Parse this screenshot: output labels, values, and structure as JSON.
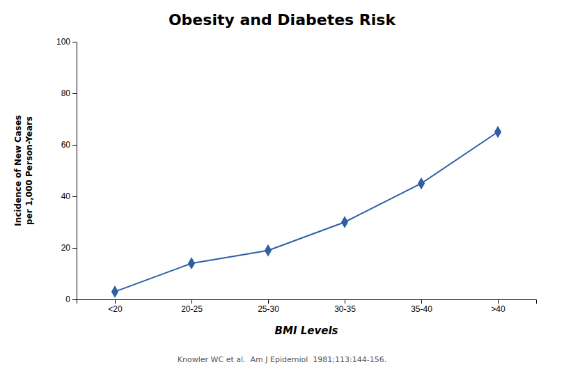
{
  "chart_data": {
    "type": "line",
    "title": "Obesity and Diabetes Risk",
    "x_label": "BMI Levels",
    "y_label": [
      "Incidence of New Cases",
      "per 1,000 Person-Years"
    ],
    "annotations": [
      "Knowler WC et al.  Am J Epidemiol  1981;113:144-156."
    ],
    "categories": [
      "<20",
      "20-25",
      "25-30",
      "30-35",
      "35-40",
      ">40"
    ],
    "values": [
      3,
      14,
      19,
      30,
      45,
      65
    ],
    "color": "#2E5FA3",
    "marker": "diamond",
    "ylim": [
      0,
      100
    ],
    "yticks": [
      0,
      20,
      40,
      60,
      80,
      100
    ],
    "grid": false
  }
}
